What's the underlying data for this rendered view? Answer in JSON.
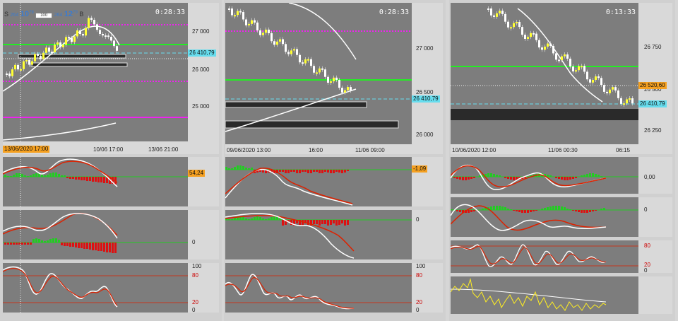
{
  "colors": {
    "bullish_candle": "#ffff33",
    "bearish_candle": "#ffffff",
    "ma_line": "#ffffff",
    "support_line": "#22ee22",
    "resistance_line": "#ee22ee",
    "cyan_line": "#66ddee",
    "zone": "#2a2a2a",
    "osc_fast": "#ffffff",
    "osc_slow": "#dd2200",
    "hist_pos": "#22cc22",
    "hist_neg": "#dd1111",
    "wpr_line": "#ffee22"
  },
  "trade_panel": {
    "sell_label": "S",
    "sell_small": "264",
    "sell_big": "10",
    "sell_sup": "79",
    "volume": "100",
    "buy_small": "264",
    "buy_big": "12",
    "buy_sup": "79",
    "buy_label": "B"
  },
  "charts": [
    {
      "timer": "0:28:33",
      "price_labels": [
        "27 000",
        "26 000",
        "25 000"
      ],
      "cyan_tag": "26 410,79",
      "time_labels": [
        "13/06/2020 17:00",
        "10/06 17:00",
        "13/06 21:00"
      ],
      "osc1_tag": "54,24",
      "osc2_label": "0",
      "stoch_labels": [
        "100",
        "80",
        "20",
        "0"
      ]
    },
    {
      "timer": "0:28:33",
      "price_labels": [
        "27 000",
        "26 500",
        "26 000"
      ],
      "cyan_tag": "26 410,79",
      "time_labels": [
        "09/06/2020 13:00",
        "16:00",
        "11/06 09:00"
      ],
      "osc1_tag": "-1,09",
      "osc2_label": "0",
      "stoch_labels": [
        "100",
        "80",
        "20",
        "0"
      ]
    },
    {
      "timer": "0:13:33",
      "price_labels": [
        "26 750",
        "26 500",
        "26 250"
      ],
      "orange_tag": "26 520,60",
      "cyan_tag": "26 410,79",
      "time_labels": [
        "10/06/2020 12:00",
        "11/06 00:30",
        "06:15"
      ],
      "osc1_label": "0,00",
      "osc2_label": "0",
      "stoch_labels": [
        "80",
        "20",
        "0"
      ]
    }
  ]
}
